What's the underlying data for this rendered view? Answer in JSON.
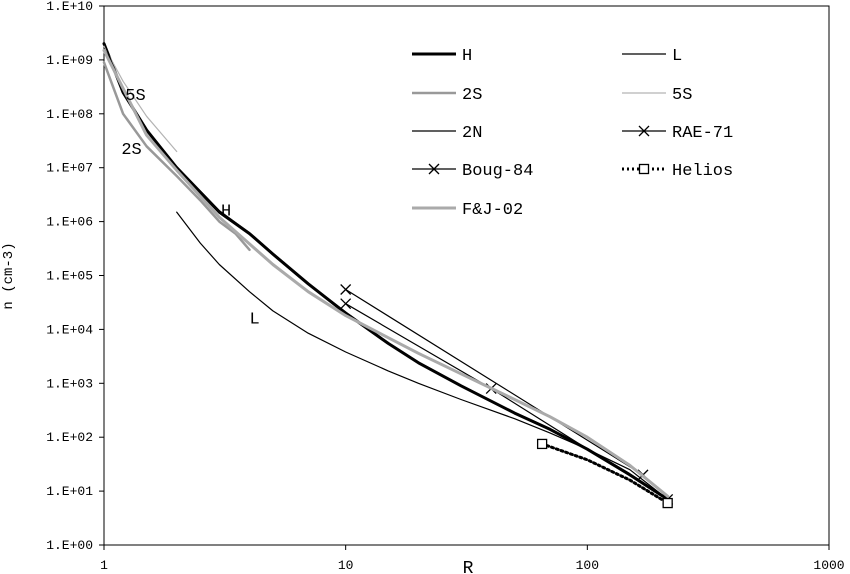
{
  "chart_data": {
    "type": "line",
    "xlabel": "R",
    "ylabel": "n (cm-3)",
    "x_scale": "log",
    "y_scale": "log",
    "xlim": [
      1,
      1000
    ],
    "ylim": [
      1,
      10000000000
    ],
    "grid": false,
    "legend_position": "top-right",
    "x_tick_labels": [
      "1",
      "10",
      "100",
      "1000"
    ],
    "y_tick_labels": [
      "1.E+00",
      "1.E+01",
      "1.E+02",
      "1.E+03",
      "1.E+04",
      "1.E+05",
      "1.E+06",
      "1.E+07",
      "1.E+08",
      "1.E+09",
      "1.E+10"
    ],
    "series": [
      {
        "name": "H",
        "color": "#000000",
        "style": "solid-thick",
        "marker": "none",
        "x": [
          1.0,
          1.2,
          1.5,
          2.0,
          3.0,
          4.0,
          5.0,
          7.0,
          10.0,
          15.0,
          20.0,
          30.0,
          50.0,
          70.0,
          100.0,
          150.0,
          215.0
        ],
        "y": [
          2000000000,
          250000000,
          50000000,
          10000000,
          1500000,
          600000,
          250000,
          70000,
          20000,
          5500,
          2400,
          900,
          280,
          140,
          60,
          20,
          7
        ]
      },
      {
        "name": "L",
        "color": "#000000",
        "style": "solid-thin",
        "marker": "none",
        "x": [
          2.0,
          2.5,
          3.0,
          4.0,
          5.0,
          7.0,
          10.0,
          15.0,
          20.0,
          30.0,
          50.0,
          70.0,
          100.0,
          150.0,
          215.0
        ],
        "y": [
          1500000,
          400000,
          160000,
          50000,
          22000,
          8500,
          3800,
          1700,
          1000,
          500,
          220,
          120,
          60,
          25,
          7
        ]
      },
      {
        "name": "2S",
        "color": "#999999",
        "style": "solid-medium",
        "marker": "none",
        "x": [
          1.0,
          1.2,
          1.5,
          2.0,
          2.5,
          3.0,
          3.5,
          4.0
        ],
        "y": [
          900000000,
          100000000,
          25000000,
          7000000,
          2500000,
          1000000,
          600000,
          300000
        ]
      },
      {
        "name": "5S",
        "color": "#b3b3b3",
        "style": "solid-thin",
        "marker": "none",
        "x": [
          1.0,
          1.2,
          1.5,
          2.0
        ],
        "y": [
          1800000000,
          400000000,
          90000000,
          20000000
        ]
      },
      {
        "name": "2N",
        "color": "#000000",
        "style": "solid-thin",
        "marker": "none",
        "x": [
          1.0,
          1.2,
          1.5,
          2.0,
          3.0,
          4.0,
          5.0,
          7.0,
          10.0,
          15.0,
          20.0,
          30.0,
          50.0,
          70.0,
          100.0,
          150.0,
          215.0
        ],
        "y": [
          2100000000,
          260000000,
          52000000,
          10500000,
          1600000,
          620000,
          260000,
          72000,
          21000,
          5700,
          2500,
          920,
          290,
          145,
          62,
          21,
          7.2
        ]
      },
      {
        "name": "RAE-71",
        "color": "#000000",
        "style": "solid-thin",
        "marker": "x",
        "x": [
          10.0,
          170.0
        ],
        "y": [
          55000,
          20
        ]
      },
      {
        "name": "Boug-84",
        "color": "#000000",
        "style": "solid-thin",
        "marker": "x",
        "x": [
          10.0,
          40.0,
          215.0
        ],
        "y": [
          30000,
          800,
          7
        ]
      },
      {
        "name": "Helios",
        "color": "#000000",
        "style": "dotted",
        "marker": "square",
        "x": [
          65.0,
          100.0,
          150.0,
          215.0
        ],
        "y": [
          75,
          38,
          16,
          6
        ]
      },
      {
        "name": "F&J-02",
        "color": "#aaaaaa",
        "style": "solid-thick",
        "marker": "none",
        "x": [
          1.0,
          1.5,
          2.0,
          3.0,
          5.0,
          7.0,
          10.0,
          15.0,
          20.0,
          30.0,
          50.0,
          70.0,
          100.0,
          150.0,
          215.0
        ],
        "y": [
          1500000000,
          40000000,
          9000000,
          1200000,
          160000,
          50000,
          18000,
          7000,
          3600,
          1500,
          500,
          240,
          100,
          30,
          8
        ]
      }
    ],
    "annotations": [
      {
        "text": "5S",
        "x": 1.35,
        "y": 180000000
      },
      {
        "text": "2S",
        "x": 1.3,
        "y": 18000000
      },
      {
        "text": "H",
        "x": 3.2,
        "y": 1300000
      },
      {
        "text": "L",
        "x": 4.2,
        "y": 13000
      }
    ]
  }
}
